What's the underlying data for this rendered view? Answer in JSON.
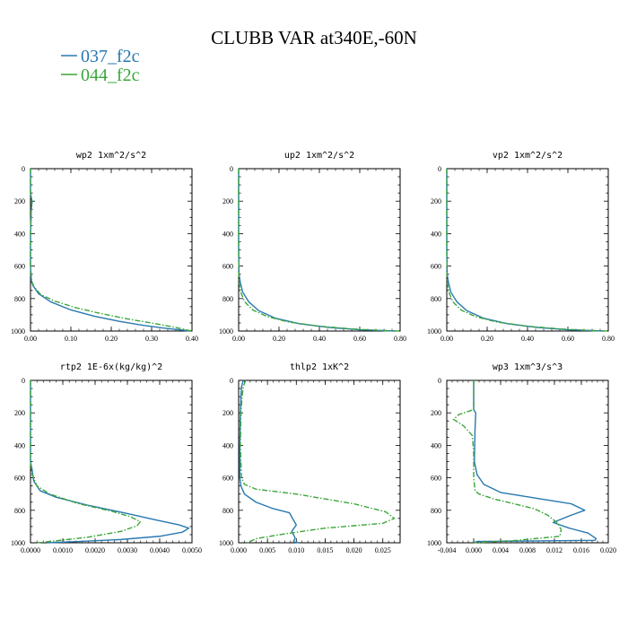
{
  "figure": {
    "title": "CLUBB VAR at340E,-60N",
    "legend": [
      {
        "label": "037_f2c",
        "color": "#2878b0",
        "dash": "solid"
      },
      {
        "label": "044_f2c",
        "color": "#3aa63a",
        "dash": "dashdot"
      }
    ]
  },
  "chart_data": [
    {
      "type": "line",
      "title": "wp2   1xm^2/s^2",
      "xlim": [
        0,
        0.4
      ],
      "ylim": [
        1000,
        0
      ],
      "xticks": [
        0,
        0.1,
        0.2,
        0.3,
        0.4
      ],
      "xtick_labels": [
        "0.00",
        "0.10",
        "0.20",
        "0.30",
        "0.40"
      ],
      "yticks": [
        0,
        200,
        400,
        600,
        800,
        1000
      ],
      "ytick_labels": [
        "0",
        "200",
        "400",
        "600",
        "800",
        "1000"
      ],
      "series": [
        {
          "name": "037_f2c",
          "points": [
            [
              0.0,
              0
            ],
            [
              0.0,
              150
            ],
            [
              0.004,
              205
            ],
            [
              0.002,
              250
            ],
            [
              0.0,
              400
            ],
            [
              0.0,
              600
            ],
            [
              0.002,
              690
            ],
            [
              0.006,
              720
            ],
            [
              0.02,
              770
            ],
            [
              0.05,
              820
            ],
            [
              0.1,
              870
            ],
            [
              0.16,
              910
            ],
            [
              0.22,
              940
            ],
            [
              0.28,
              965
            ],
            [
              0.33,
              982
            ],
            [
              0.37,
              993
            ],
            [
              0.395,
              1000
            ]
          ]
        },
        {
          "name": "044_f2c",
          "points": [
            [
              0.0,
              0
            ],
            [
              0.0,
              150
            ],
            [
              0.003,
              210
            ],
            [
              0.002,
              250
            ],
            [
              0.0,
              400
            ],
            [
              0.0,
              600
            ],
            [
              0.003,
              690
            ],
            [
              0.008,
              725
            ],
            [
              0.025,
              775
            ],
            [
              0.06,
              815
            ],
            [
              0.11,
              855
            ],
            [
              0.17,
              890
            ],
            [
              0.24,
              925
            ],
            [
              0.31,
              955
            ],
            [
              0.36,
              978
            ],
            [
              0.39,
              995
            ],
            [
              0.4,
              1000
            ]
          ]
        }
      ]
    },
    {
      "type": "line",
      "title": "up2   1xm^2/s^2",
      "xlim": [
        0,
        0.8
      ],
      "ylim": [
        1000,
        0
      ],
      "xticks": [
        0,
        0.2,
        0.4,
        0.6,
        0.8
      ],
      "xtick_labels": [
        "0.00",
        "0.20",
        "0.40",
        "0.60",
        "0.80"
      ],
      "yticks": [
        0,
        200,
        400,
        600,
        800,
        1000
      ],
      "ytick_labels": [
        "0",
        "200",
        "400",
        "600",
        "800",
        "1000"
      ],
      "series": [
        {
          "name": "037_f2c",
          "points": [
            [
              0.0,
              0
            ],
            [
              0.0,
              500
            ],
            [
              0.002,
              650
            ],
            [
              0.008,
              700
            ],
            [
              0.02,
              760
            ],
            [
              0.05,
              820
            ],
            [
              0.1,
              875
            ],
            [
              0.18,
              920
            ],
            [
              0.3,
              955
            ],
            [
              0.45,
              978
            ],
            [
              0.6,
              992
            ],
            [
              0.78,
              1000
            ]
          ]
        },
        {
          "name": "044_f2c",
          "points": [
            [
              0.0,
              0
            ],
            [
              0.0,
              500
            ],
            [
              0.002,
              700
            ],
            [
              0.01,
              760
            ],
            [
              0.03,
              820
            ],
            [
              0.07,
              870
            ],
            [
              0.14,
              910
            ],
            [
              0.25,
              945
            ],
            [
              0.4,
              970
            ],
            [
              0.56,
              987
            ],
            [
              0.72,
              997
            ],
            [
              0.8,
              1000
            ]
          ]
        }
      ]
    },
    {
      "type": "line",
      "title": "vp2   1xm^2/s^2",
      "xlim": [
        0,
        0.8
      ],
      "ylim": [
        1000,
        0
      ],
      "xticks": [
        0,
        0.2,
        0.4,
        0.6,
        0.8
      ],
      "xtick_labels": [
        "0.00",
        "0.20",
        "0.40",
        "0.60",
        "0.80"
      ],
      "yticks": [
        0,
        200,
        400,
        600,
        800,
        1000
      ],
      "ytick_labels": [
        "0",
        "200",
        "400",
        "600",
        "800",
        "1000"
      ],
      "series": [
        {
          "name": "037_f2c",
          "points": [
            [
              0.0,
              0
            ],
            [
              0.0,
              500
            ],
            [
              0.002,
              650
            ],
            [
              0.008,
              700
            ],
            [
              0.02,
              760
            ],
            [
              0.05,
              820
            ],
            [
              0.1,
              875
            ],
            [
              0.18,
              920
            ],
            [
              0.3,
              955
            ],
            [
              0.45,
              978
            ],
            [
              0.6,
              992
            ],
            [
              0.78,
              1000
            ]
          ]
        },
        {
          "name": "044_f2c",
          "points": [
            [
              0.0,
              0
            ],
            [
              0.0,
              500
            ],
            [
              0.002,
              700
            ],
            [
              0.01,
              760
            ],
            [
              0.03,
              820
            ],
            [
              0.07,
              870
            ],
            [
              0.14,
              910
            ],
            [
              0.25,
              945
            ],
            [
              0.4,
              970
            ],
            [
              0.56,
              987
            ],
            [
              0.72,
              997
            ],
            [
              0.8,
              1000
            ]
          ]
        }
      ]
    },
    {
      "type": "line",
      "title": "rtp2   1E-6x(kg/kg)^2",
      "xlim": [
        0,
        0.005
      ],
      "ylim": [
        1000,
        0
      ],
      "xticks": [
        0,
        0.001,
        0.002,
        0.003,
        0.004,
        0.005
      ],
      "xtick_labels": [
        "0.0000",
        "0.0010",
        "0.0020",
        "0.0030",
        "0.0040",
        "0.0050"
      ],
      "yticks": [
        0,
        200,
        400,
        600,
        800,
        1000
      ],
      "ytick_labels": [
        "0",
        "200",
        "400",
        "600",
        "800",
        "1000"
      ],
      "series": [
        {
          "name": "037_f2c",
          "points": [
            [
              0.0,
              0
            ],
            [
              0.0,
              200
            ],
            [
              0.0,
              500
            ],
            [
              5e-05,
              550
            ],
            [
              0.0001,
              620
            ],
            [
              0.0003,
              680
            ],
            [
              0.0008,
              720
            ],
            [
              0.0018,
              770
            ],
            [
              0.003,
              820
            ],
            [
              0.0039,
              860
            ],
            [
              0.0046,
              890
            ],
            [
              0.0049,
              910
            ],
            [
              0.0047,
              935
            ],
            [
              0.004,
              960
            ],
            [
              0.0028,
              980
            ],
            [
              0.0015,
              992
            ],
            [
              0.0005,
              1000
            ]
          ]
        },
        {
          "name": "044_f2c",
          "points": [
            [
              0.0,
              0
            ],
            [
              0.0,
              200
            ],
            [
              0.0,
              500
            ],
            [
              5e-05,
              580
            ],
            [
              0.0002,
              650
            ],
            [
              0.0006,
              700
            ],
            [
              0.0015,
              760
            ],
            [
              0.0025,
              805
            ],
            [
              0.0031,
              840
            ],
            [
              0.0034,
              870
            ],
            [
              0.0033,
              895
            ],
            [
              0.0028,
              930
            ],
            [
              0.0018,
              965
            ],
            [
              0.0007,
              990
            ],
            [
              0.0002,
              1000
            ]
          ]
        }
      ]
    },
    {
      "type": "line",
      "title": "thlp2   1xK^2",
      "xlim": [
        0,
        0.028
      ],
      "ylim": [
        1000,
        0
      ],
      "xticks": [
        0,
        0.005,
        0.01,
        0.015,
        0.02,
        0.025
      ],
      "xtick_labels": [
        "0.000",
        "0.005",
        "0.010",
        "0.015",
        "0.020",
        "0.025"
      ],
      "yticks": [
        0,
        200,
        400,
        600,
        800,
        1000
      ],
      "ytick_labels": [
        "0",
        "200",
        "400",
        "600",
        "800",
        "1000"
      ],
      "series": [
        {
          "name": "037_f2c",
          "points": [
            [
              0.0008,
              0
            ],
            [
              0.0005,
              40
            ],
            [
              0.0004,
              100
            ],
            [
              0.0003,
              200
            ],
            [
              0.0002,
              400
            ],
            [
              0.0002,
              600
            ],
            [
              0.0004,
              650
            ],
            [
              0.001,
              700
            ],
            [
              0.003,
              750
            ],
            [
              0.006,
              790
            ],
            [
              0.0088,
              815
            ],
            [
              0.0095,
              860
            ],
            [
              0.01,
              890
            ],
            [
              0.0092,
              930
            ],
            [
              0.0098,
              970
            ],
            [
              0.0095,
              995
            ],
            [
              0.0105,
              1000
            ]
          ]
        },
        {
          "name": "044_f2c",
          "points": [
            [
              0.0012,
              0
            ],
            [
              0.0008,
              40
            ],
            [
              0.0006,
              100
            ],
            [
              0.0004,
              200
            ],
            [
              0.0003,
              400
            ],
            [
              0.0005,
              600
            ],
            [
              0.001,
              640
            ],
            [
              0.003,
              670
            ],
            [
              0.01,
              700
            ],
            [
              0.02,
              760
            ],
            [
              0.0255,
              810
            ],
            [
              0.027,
              850
            ],
            [
              0.025,
              880
            ],
            [
              0.015,
              910
            ],
            [
              0.008,
              945
            ],
            [
              0.003,
              975
            ],
            [
              0.0015,
              1000
            ]
          ]
        }
      ]
    },
    {
      "type": "line",
      "title": "wp3   1xm^3/s^3",
      "xlim": [
        -0.004,
        0.02
      ],
      "ylim": [
        1000,
        0
      ],
      "xticks": [
        -0.004,
        0,
        0.004,
        0.008,
        0.012,
        0.016,
        0.02
      ],
      "xtick_labels": [
        "-0.004",
        "0.000",
        "0.004",
        "0.008",
        "0.012",
        "0.016",
        "0.020"
      ],
      "yticks": [
        0,
        200,
        400,
        600,
        800,
        1000
      ],
      "ytick_labels": [
        "0",
        "200",
        "400",
        "600",
        "800",
        "1000"
      ],
      "series": [
        {
          "name": "037_f2c",
          "points": [
            [
              0.0,
              0
            ],
            [
              0.0,
              180
            ],
            [
              0.0003,
              200
            ],
            [
              0.0002,
              300
            ],
            [
              0.0001,
              500
            ],
            [
              0.0005,
              580
            ],
            [
              0.0015,
              640
            ],
            [
              0.004,
              690
            ],
            [
              0.01,
              730
            ],
            [
              0.0145,
              760
            ],
            [
              0.0165,
              800
            ],
            [
              0.0145,
              830
            ],
            [
              0.0118,
              875
            ],
            [
              0.0142,
              910
            ],
            [
              0.017,
              940
            ],
            [
              0.0182,
              975
            ],
            [
              0.018,
              985
            ],
            [
              0.0005,
              992
            ],
            [
              0.0,
              1000
            ]
          ]
        },
        {
          "name": "044_f2c",
          "points": [
            [
              0.0,
              0
            ],
            [
              0.0,
              180
            ],
            [
              -0.0022,
              210
            ],
            [
              -0.003,
              240
            ],
            [
              -0.0015,
              280
            ],
            [
              -0.0002,
              340
            ],
            [
              0.0,
              450
            ],
            [
              0.0,
              600
            ],
            [
              0.0002,
              680
            ],
            [
              0.0008,
              700
            ],
            [
              0.003,
              730
            ],
            [
              0.006,
              760
            ],
            [
              0.009,
              790
            ],
            [
              0.011,
              830
            ],
            [
              0.0125,
              880
            ],
            [
              0.013,
              920
            ],
            [
              0.0128,
              960
            ],
            [
              0.0065,
              985
            ],
            [
              0.0,
              1000
            ]
          ]
        }
      ]
    }
  ]
}
